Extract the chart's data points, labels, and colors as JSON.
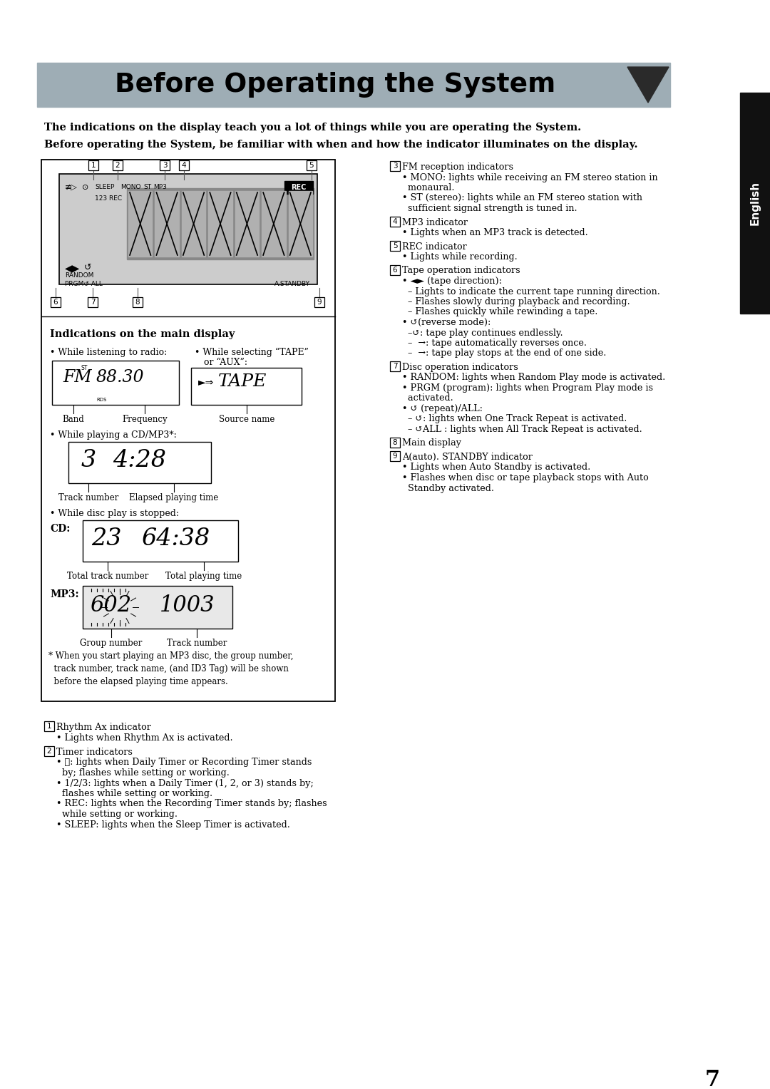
{
  "title": "Before Operating the System",
  "page_bg": "#ffffff",
  "sidebar_color": "#111111",
  "sidebar_text": "English",
  "page_number": "7",
  "title_bar_color": "#9eadb5",
  "triangle_color": "#2a2a2a",
  "intro_line1": "The indications on the display teach you a lot of things while you are operating the System.",
  "intro_line2": "Before operating the System, be familiar with when and how the indicator illuminates on the display.",
  "left_panel_title": "Indications on the main display",
  "right_items": [
    {
      "num": "3",
      "header": "FM reception indicators",
      "lines": [
        "• MONO: lights while receiving an FM stereo station in",
        "  monaural.",
        "• ST (stereo): lights while an FM stereo station with",
        "  sufficient signal strength is tuned in."
      ]
    },
    {
      "num": "4",
      "header": "MP3 indicator",
      "lines": [
        "• Lights when an MP3 track is detected."
      ]
    },
    {
      "num": "5",
      "header": "REC indicator",
      "lines": [
        "• Lights while recording."
      ]
    },
    {
      "num": "6",
      "header": "Tape operation indicators",
      "lines": [
        "• ◄► (tape direction):",
        "  – Lights to indicate the current tape running direction.",
        "  – Flashes slowly during playback and recording.",
        "  – Flashes quickly while rewinding a tape.",
        "• ↺(reverse mode):",
        "  –↺: tape play continues endlessly.",
        "  –  →: tape automatically reverses once.",
        "  –  →: tape play stops at the end of one side."
      ]
    },
    {
      "num": "7",
      "header": "Disc operation indicators",
      "lines": [
        "• RANDOM: lights when Random Play mode is activated.",
        "• PRGM (program): lights when Program Play mode is",
        "  activated.",
        "• ↺ (repeat)/ALL:",
        "  – ↺: lights when One Track Repeat is activated.",
        "  – ↺ALL : lights when All Track Repeat is activated."
      ]
    },
    {
      "num": "8",
      "header": "Main display",
      "lines": []
    },
    {
      "num": "9",
      "header": "A(auto). STANDBY indicator",
      "lines": [
        "• Lights when Auto Standby is activated.",
        "• Flashes when disc or tape playback stops with Auto",
        "  Standby activated."
      ]
    }
  ],
  "bottom_items": [
    {
      "num": "1",
      "header": "Rhythm Ax indicator",
      "lines": [
        "• Lights when Rhythm Ax is activated."
      ]
    },
    {
      "num": "2",
      "header": "Timer indicators",
      "lines": [
        "• ⌛: lights when Daily Timer or Recording Timer stands",
        "  by; flashes while setting or working.",
        "• 1/2/3: lights when a Daily Timer (1, 2, or 3) stands by;",
        "  flashes while setting or working.",
        "• REC: lights when the Recording Timer stands by; flashes",
        "  while setting or working.",
        "• SLEEP: lights when the Sleep Timer is activated."
      ]
    }
  ]
}
